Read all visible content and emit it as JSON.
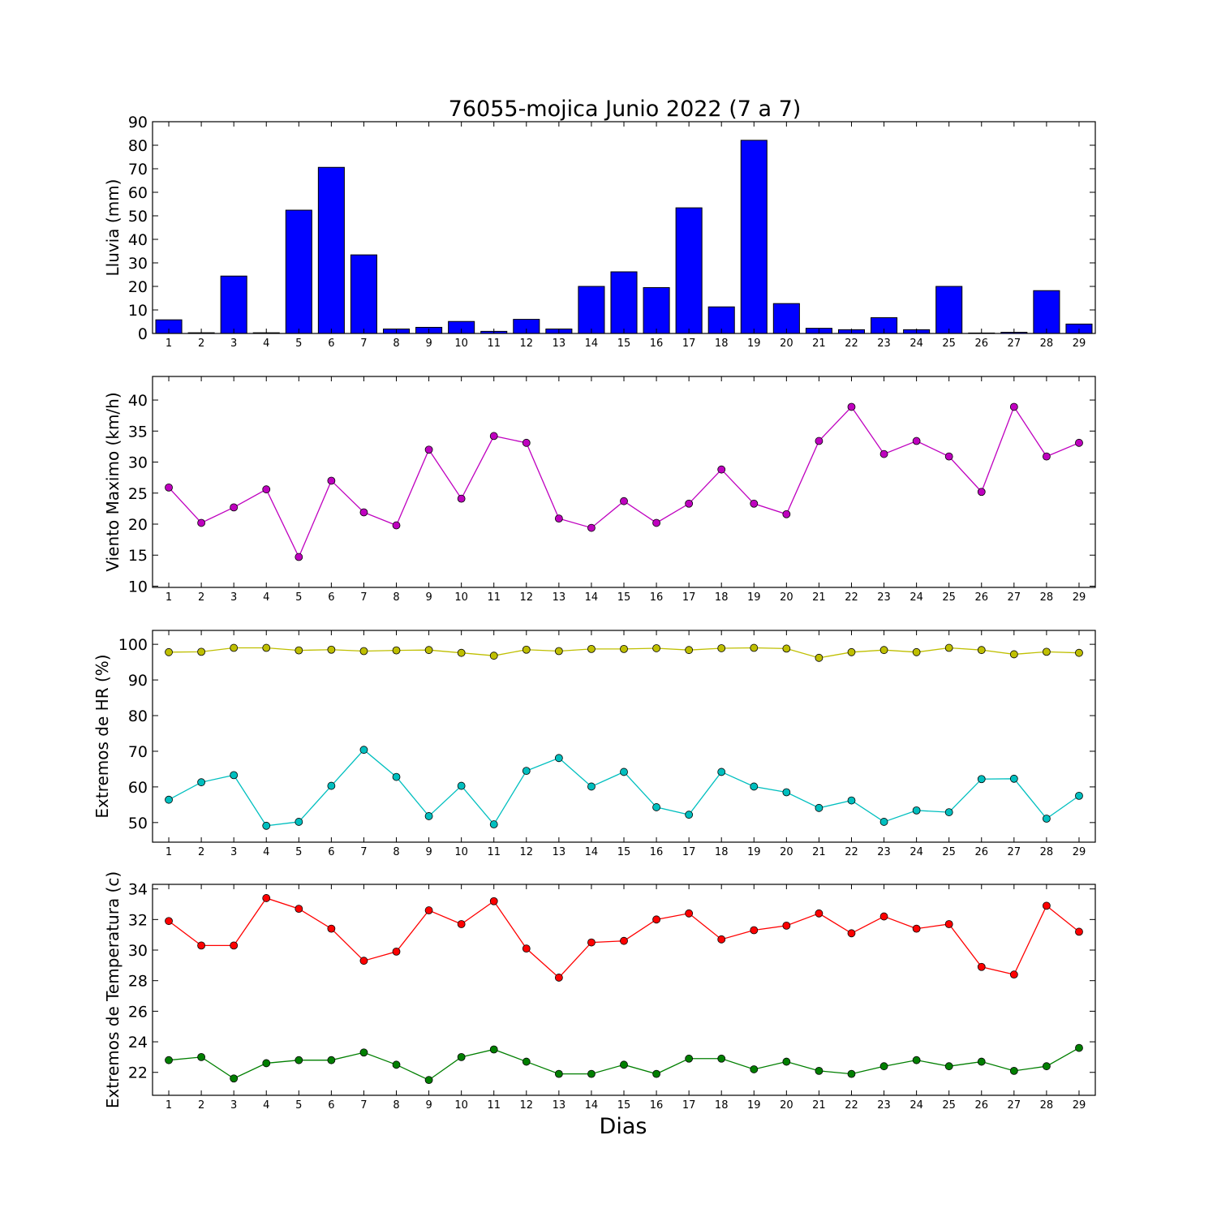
{
  "figure": {
    "title": "76055-mojica Junio 2022  (7 a 7)",
    "xlabel": "Dias"
  },
  "chart_data": [
    {
      "type": "bar",
      "ylabel": "Lluvia (mm)",
      "ylim": [
        0,
        90
      ],
      "yticks": [
        0,
        10,
        20,
        30,
        40,
        50,
        60,
        70,
        80,
        90
      ],
      "x": [
        1,
        2,
        3,
        4,
        5,
        6,
        7,
        8,
        9,
        10,
        11,
        12,
        13,
        14,
        15,
        16,
        17,
        18,
        19,
        20,
        21,
        22,
        23,
        24,
        25,
        26,
        27,
        28,
        29
      ],
      "series": [
        {
          "color": "#0000ff",
          "values": [
            5.8,
            0.3,
            24.4,
            0.3,
            52.4,
            70.6,
            33.4,
            1.9,
            2.6,
            5.1,
            0.9,
            6.0,
            1.9,
            20.0,
            26.2,
            19.5,
            53.4,
            11.3,
            82.1,
            12.7,
            2.2,
            1.6,
            6.7,
            1.6,
            20.0,
            0.2,
            0.5,
            18.2,
            4.0
          ]
        }
      ],
      "xlim": [
        0.5,
        29.5
      ],
      "grid": false
    },
    {
      "type": "line",
      "ylabel": "Viento Maximo (km/h)",
      "ylim": [
        9.8,
        43.8
      ],
      "yticks": [
        10,
        15,
        20,
        25,
        30,
        35,
        40
      ],
      "x": [
        1,
        2,
        3,
        4,
        5,
        6,
        7,
        8,
        9,
        10,
        11,
        12,
        13,
        14,
        15,
        16,
        17,
        18,
        19,
        20,
        21,
        22,
        23,
        24,
        25,
        26,
        27,
        28,
        29
      ],
      "series": [
        {
          "color": "#bf00bf",
          "values": [
            25.9,
            20.2,
            22.7,
            25.6,
            14.7,
            27.0,
            21.9,
            19.8,
            32.0,
            24.1,
            34.2,
            33.1,
            20.9,
            19.4,
            23.7,
            20.2,
            23.3,
            28.8,
            23.3,
            21.6,
            33.4,
            38.9,
            31.3,
            33.4,
            30.9,
            25.2,
            38.9,
            30.9,
            33.1
          ]
        }
      ],
      "xlim": [
        0.5,
        29.5
      ],
      "grid": false
    },
    {
      "type": "line",
      "ylabel": "Extremos de HR (%)",
      "ylim": [
        44.5,
        103.9
      ],
      "yticks": [
        50,
        60,
        70,
        80,
        90,
        100
      ],
      "x": [
        1,
        2,
        3,
        4,
        5,
        6,
        7,
        8,
        9,
        10,
        11,
        12,
        13,
        14,
        15,
        16,
        17,
        18,
        19,
        20,
        21,
        22,
        23,
        24,
        25,
        26,
        27,
        28,
        29
      ],
      "series": [
        {
          "color": "#bfbf00",
          "values": [
            97.8,
            97.9,
            99.0,
            99.0,
            98.3,
            98.5,
            98.1,
            98.3,
            98.4,
            97.6,
            96.8,
            98.5,
            98.1,
            98.7,
            98.7,
            98.9,
            98.4,
            98.9,
            99.0,
            98.8,
            96.2,
            97.8,
            98.4,
            97.8,
            99.0,
            98.4,
            97.2,
            97.9,
            97.6
          ]
        },
        {
          "color": "#00bfbf",
          "values": [
            56.4,
            61.3,
            63.3,
            49.1,
            50.2,
            60.3,
            70.4,
            62.8,
            51.8,
            60.3,
            49.5,
            64.5,
            68.1,
            60.1,
            64.2,
            54.3,
            52.2,
            64.2,
            60.1,
            58.5,
            54.1,
            56.2,
            50.2,
            53.4,
            52.9,
            62.2,
            62.3,
            51.1,
            57.5
          ]
        }
      ],
      "xlim": [
        0.5,
        29.5
      ],
      "grid": false
    },
    {
      "type": "line",
      "ylabel": "Extremos de Temperatura (c)",
      "ylim": [
        20.5,
        34.3
      ],
      "yticks": [
        22,
        24,
        26,
        28,
        30,
        32,
        34
      ],
      "x": [
        1,
        2,
        3,
        4,
        5,
        6,
        7,
        8,
        9,
        10,
        11,
        12,
        13,
        14,
        15,
        16,
        17,
        18,
        19,
        20,
        21,
        22,
        23,
        24,
        25,
        26,
        27,
        28,
        29
      ],
      "series": [
        {
          "color": "#ff0000",
          "values": [
            31.9,
            30.3,
            30.3,
            33.4,
            32.7,
            31.4,
            29.3,
            29.9,
            32.6,
            31.7,
            33.2,
            30.1,
            28.2,
            30.5,
            30.6,
            32.0,
            32.4,
            30.7,
            31.3,
            31.6,
            32.4,
            31.1,
            32.2,
            31.4,
            31.7,
            28.9,
            28.4,
            32.9,
            31.2
          ]
        },
        {
          "color": "#007f00",
          "values": [
            22.8,
            23.0,
            21.6,
            22.6,
            22.8,
            22.8,
            23.3,
            22.5,
            21.5,
            23.0,
            23.5,
            22.7,
            21.9,
            21.9,
            22.5,
            21.9,
            22.9,
            22.9,
            22.2,
            22.7,
            22.1,
            21.9,
            22.4,
            22.8,
            22.4,
            22.7,
            22.1,
            22.4,
            23.6
          ]
        }
      ],
      "xlim": [
        0.5,
        29.5
      ],
      "grid": false
    }
  ]
}
